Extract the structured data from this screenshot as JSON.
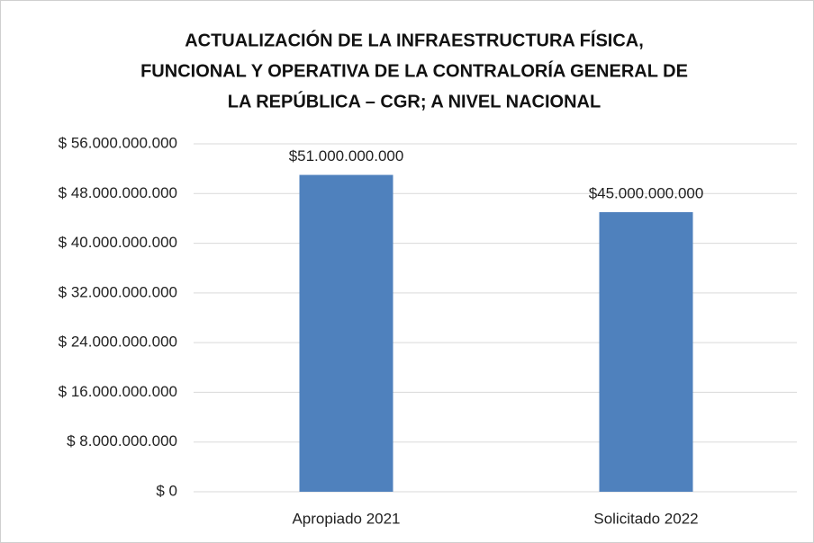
{
  "chart_data": {
    "type": "bar",
    "title": [
      "ACTUALIZACIÓN DE LA INFRAESTRUCTURA FÍSICA,",
      "FUNCIONAL Y OPERATIVA DE LA CONTRALORÍA GENERAL DE",
      "LA REPÚBLICA – CGR; A NIVEL NACIONAL"
    ],
    "categories": [
      "Apropiado 2021",
      "Solicitado 2022"
    ],
    "values": [
      51000000000,
      45000000000
    ],
    "value_labels": [
      "$51.000.000.000",
      "$45.000.000.000"
    ],
    "color": "#4f81bd",
    "ylim": [
      0,
      56000000000
    ],
    "yticks": [
      {
        "value": 0,
        "label": "$ 0"
      },
      {
        "value": 8000000000,
        "label": "$ 8.000.000.000"
      },
      {
        "value": 16000000000,
        "label": "$ 16.000.000.000"
      },
      {
        "value": 24000000000,
        "label": "$ 24.000.000.000"
      },
      {
        "value": 32000000000,
        "label": "$ 32.000.000.000"
      },
      {
        "value": 40000000000,
        "label": "$ 40.000.000.000"
      },
      {
        "value": 48000000000,
        "label": "$ 48.000.000.000"
      },
      {
        "value": 56000000000,
        "label": "$ 56.000.000.000"
      }
    ],
    "grid": true
  }
}
